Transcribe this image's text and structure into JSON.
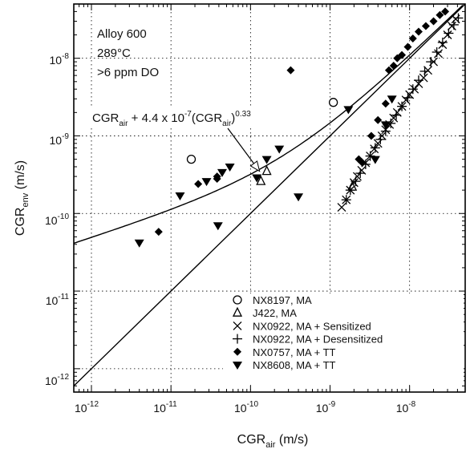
{
  "chart_data": {
    "type": "scatter",
    "xscale": "log",
    "yscale": "log",
    "xlim": [
      6e-13,
      5e-08
    ],
    "ylim": [
      5e-13,
      5e-08
    ],
    "grid": "dotted",
    "xlabel": "CGR",
    "xlabel_sub": "air",
    "xlabel_unit": " (m/s)",
    "ylabel": "CGR",
    "ylabel_sub": "env",
    "ylabel_unit": " (m/s)",
    "x_ticks": [
      {
        "value": 1e-12,
        "label": "10",
        "exp": "-12"
      },
      {
        "value": 1e-11,
        "label": "10",
        "exp": "-11"
      },
      {
        "value": 1e-10,
        "label": "10",
        "exp": "-10"
      },
      {
        "value": 1e-09,
        "label": "10",
        "exp": "-9"
      },
      {
        "value": 1e-08,
        "label": "10",
        "exp": "-8"
      }
    ],
    "y_ticks": [
      {
        "value": 1e-08,
        "label": "10",
        "exp": "-8"
      },
      {
        "value": 1e-09,
        "label": "10",
        "exp": "-9"
      },
      {
        "value": 1e-10,
        "label": "10",
        "exp": "-10"
      },
      {
        "value": 1e-11,
        "label": "10",
        "exp": "-11"
      },
      {
        "value": 1e-12,
        "label": "10",
        "exp": "-12"
      }
    ],
    "conditions": [
      "Alloy 600",
      "289°C",
      ">6 ppm DO"
    ],
    "curve_annotation": {
      "parts": [
        "CGR",
        "air",
        " + 4.4 x 10",
        "-7",
        "(CGR",
        "air",
        ")",
        "0.33"
      ],
      "arrow_to": [
        1.3e-10,
        3.5e-10
      ]
    },
    "legend_position": "bottom-right",
    "lines": [
      {
        "type": "model",
        "coef": 4.4e-07,
        "exp": 0.33
      },
      {
        "type": "equality"
      }
    ],
    "series": [
      {
        "name": "NX8197, MA",
        "marker": "circle-open",
        "points": [
          [
            1.8e-11,
            5e-10
          ],
          [
            1.1e-09,
            2.7e-09
          ]
        ]
      },
      {
        "name": "J422, MA",
        "marker": "triangle-open",
        "points": [
          [
            1.6e-10,
            3.5e-10
          ],
          [
            1.35e-10,
            2.6e-10
          ],
          [
            1.9e-09,
            2.2e-10
          ]
        ]
      },
      {
        "name": "NX0922, MA + Sensitized",
        "marker": "x",
        "points": [
          [
            1.4e-09,
            1.2e-10
          ],
          [
            1.6e-09,
            1.5e-10
          ],
          [
            1.8e-09,
            2e-10
          ],
          [
            2e-09,
            2.5e-10
          ],
          [
            2.2e-09,
            3e-10
          ],
          [
            2.5e-09,
            3.6e-10
          ],
          [
            2.8e-09,
            4.5e-10
          ],
          [
            3.2e-09,
            5.5e-10
          ],
          [
            3.6e-09,
            6.8e-10
          ],
          [
            4e-09,
            8e-10
          ],
          [
            4.5e-09,
            1e-09
          ],
          [
            5e-09,
            1.2e-09
          ],
          [
            5.6e-09,
            1.4e-09
          ],
          [
            6.3e-09,
            1.7e-09
          ],
          [
            7e-09,
            2e-09
          ],
          [
            8e-09,
            2.4e-09
          ],
          [
            9e-09,
            2.9e-09
          ],
          [
            1e-08,
            3.4e-09
          ],
          [
            1.15e-08,
            4e-09
          ],
          [
            1.3e-08,
            4.7e-09
          ],
          [
            1.5e-08,
            5.6e-09
          ],
          [
            1.7e-08,
            7e-09
          ],
          [
            2e-08,
            9e-09
          ],
          [
            2.3e-08,
            1.15e-08
          ],
          [
            2.6e-08,
            1.5e-08
          ],
          [
            3e-08,
            2e-08
          ],
          [
            3.4e-08,
            2.6e-08
          ],
          [
            3.8e-08,
            3.2e-08
          ]
        ]
      },
      {
        "name": "NX0922, MA + Desensitized",
        "marker": "plus",
        "points": [
          [
            1.6e-09,
            1.5e-10
          ],
          [
            1.8e-09,
            2e-10
          ],
          [
            2.1e-09,
            2.6e-10
          ],
          [
            2.4e-09,
            3.3e-10
          ],
          [
            2.8e-09,
            4.3e-10
          ],
          [
            3.2e-09,
            5.5e-10
          ],
          [
            3.7e-09,
            7e-10
          ],
          [
            4.3e-09,
            9e-10
          ],
          [
            5e-09,
            1.15e-09
          ],
          [
            5.8e-09,
            1.45e-09
          ],
          [
            6.8e-09,
            1.85e-09
          ],
          [
            8e-09,
            2.4e-09
          ],
          [
            9.5e-09,
            3.1e-09
          ],
          [
            1.1e-08,
            4e-09
          ],
          [
            1.3e-08,
            5.2e-09
          ],
          [
            1.55e-08,
            6.8e-09
          ],
          [
            1.85e-08,
            9e-09
          ],
          [
            2.2e-08,
            1.2e-08
          ],
          [
            2.6e-08,
            1.6e-08
          ],
          [
            3.1e-08,
            2.1e-08
          ],
          [
            3.6e-08,
            2.7e-08
          ],
          [
            4.1e-08,
            3.3e-08
          ]
        ]
      },
      {
        "name": "NX0757, MA + TT",
        "marker": "diamond-filled",
        "points": [
          [
            7e-12,
            5.8e-11
          ],
          [
            2.2e-11,
            2.4e-10
          ],
          [
            3.8e-11,
            3e-10
          ],
          [
            3.8e-11,
            2.8e-10
          ],
          [
            3.2e-10,
            7e-09
          ],
          [
            2.3e-09,
            5e-10
          ],
          [
            2.5e-09,
            4.6e-10
          ],
          [
            3.3e-09,
            1e-09
          ],
          [
            4e-09,
            1.6e-09
          ],
          [
            5e-09,
            2.6e-09
          ],
          [
            5.5e-09,
            7e-09
          ],
          [
            6.3e-09,
            8e-09
          ],
          [
            7e-09,
            1e-08
          ],
          [
            8e-09,
            1.1e-08
          ],
          [
            9.5e-09,
            1.4e-08
          ],
          [
            1.1e-08,
            1.8e-08
          ],
          [
            1.3e-08,
            2.2e-08
          ],
          [
            1.6e-08,
            2.6e-08
          ],
          [
            2e-08,
            3e-08
          ],
          [
            2.4e-08,
            3.6e-08
          ],
          [
            2.8e-08,
            4e-08
          ]
        ]
      },
      {
        "name": "NX8608, MA + TT",
        "marker": "triangle-down-filled",
        "points": [
          [
            4e-12,
            4.2e-11
          ],
          [
            1.3e-11,
            1.7e-10
          ],
          [
            2.8e-11,
            2.6e-10
          ],
          [
            4.4e-11,
            3.4e-10
          ],
          [
            5.5e-11,
            4e-10
          ],
          [
            3.9e-11,
            7e-11
          ],
          [
            1.2e-10,
            2.9e-10
          ],
          [
            2.3e-10,
            6.8e-10
          ],
          [
            4e-10,
            1.65e-10
          ],
          [
            1.6e-10,
            5e-10
          ],
          [
            1.7e-09,
            2.2e-09
          ],
          [
            3.7e-09,
            5e-10
          ],
          [
            6e-09,
            3e-09
          ],
          [
            5e-09,
            1.4e-09
          ]
        ]
      }
    ]
  }
}
